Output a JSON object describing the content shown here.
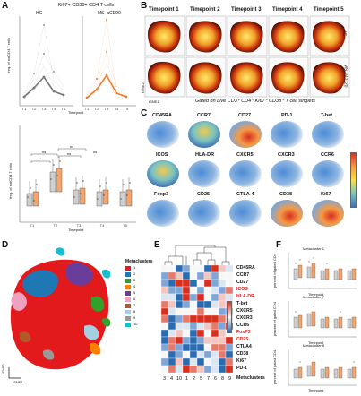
{
  "panels": {
    "a": {
      "label": "A",
      "title": "Ki67+ CD38+ CD4 T cells",
      "groups": [
        "HC",
        "MS–aCD20"
      ],
      "ylabel_top": "freq. of notCD4 T cells",
      "ylabel_bottom": "freq. of notCD4 T cells",
      "xlabel": "Timepoint",
      "timepoints": [
        "T1",
        "T2",
        "T3",
        "T4",
        "T5"
      ],
      "sig": [
        "ns",
        "**",
        "ns",
        "ns",
        "ns"
      ],
      "colors": {
        "hc": "#8c8c8c",
        "ms": "#f07a2c"
      }
    },
    "b": {
      "label": "B",
      "timepoints": [
        "Timepoint 1",
        "Timepoint 2",
        "Timepoint 3",
        "Timepoint 4",
        "Timepoint 5"
      ],
      "rows": [
        "HC",
        "MS–aCD20"
      ],
      "caption": "Gated on Live CD3⁺ CD4⁺ Ki67⁺ CD38⁺ T cell singlets",
      "axes": [
        "tSNE1",
        "tSNE2"
      ]
    },
    "c": {
      "label": "C",
      "markers": [
        "CD45RA",
        "CCR7",
        "CD27",
        "PD-1",
        "T-bet",
        "ICOS",
        "HLA-DR",
        "CXCR5",
        "CXCR3",
        "CCR6",
        "Foxp3",
        "CD25",
        "CTLA-4",
        "CD38",
        "Ki67"
      ]
    },
    "d": {
      "label": "D",
      "legend_title": "Metaclusters",
      "clusters": [
        {
          "id": "1",
          "color": "#e31a1c"
        },
        {
          "id": "2",
          "color": "#1f78b4"
        },
        {
          "id": "3",
          "color": "#33a02c"
        },
        {
          "id": "4",
          "color": "#ff7f00"
        },
        {
          "id": "5",
          "color": "#6a3d9a"
        },
        {
          "id": "6",
          "color": "#f0a0c0"
        },
        {
          "id": "7",
          "color": "#b15928"
        },
        {
          "id": "8",
          "color": "#a6cee3"
        },
        {
          "id": "9",
          "color": "#999999"
        },
        {
          "id": "10",
          "color": "#17becf"
        }
      ],
      "axes": [
        "tSNE1",
        "tSNE2"
      ]
    },
    "e": {
      "label": "E",
      "rows": [
        "CD45RA",
        "CCR7",
        "CD27",
        "ICOS",
        "HLA-DR",
        "T-bet",
        "CXCR5",
        "CXCR3",
        "CCR6",
        "FoxP3",
        "CD25",
        "CTLA4",
        "CD38",
        "Ki67",
        "PD-1"
      ],
      "row_colors": [
        "#111111",
        "#111111",
        "#111111",
        "#e31a1c",
        "#e31a1c",
        "#111111",
        "#111111",
        "#111111",
        "#111111",
        "#e31a1c",
        "#e31a1c",
        "#111111",
        "#111111",
        "#111111",
        "#111111"
      ],
      "cols": [
        "3",
        "4",
        "10",
        "1",
        "2",
        "5",
        "7",
        "6",
        "8",
        "9"
      ],
      "footer": "Metaclusters"
    },
    "f": {
      "label": "F",
      "subplots": [
        "Metacluster 1",
        "Metacluster 7",
        "Metacluster 8"
      ],
      "xlabel": "Timepoint",
      "ylabel": "percent of gated CD4",
      "ticks": [
        "T1",
        "T2",
        "T3",
        "T4",
        "T5"
      ]
    }
  }
}
